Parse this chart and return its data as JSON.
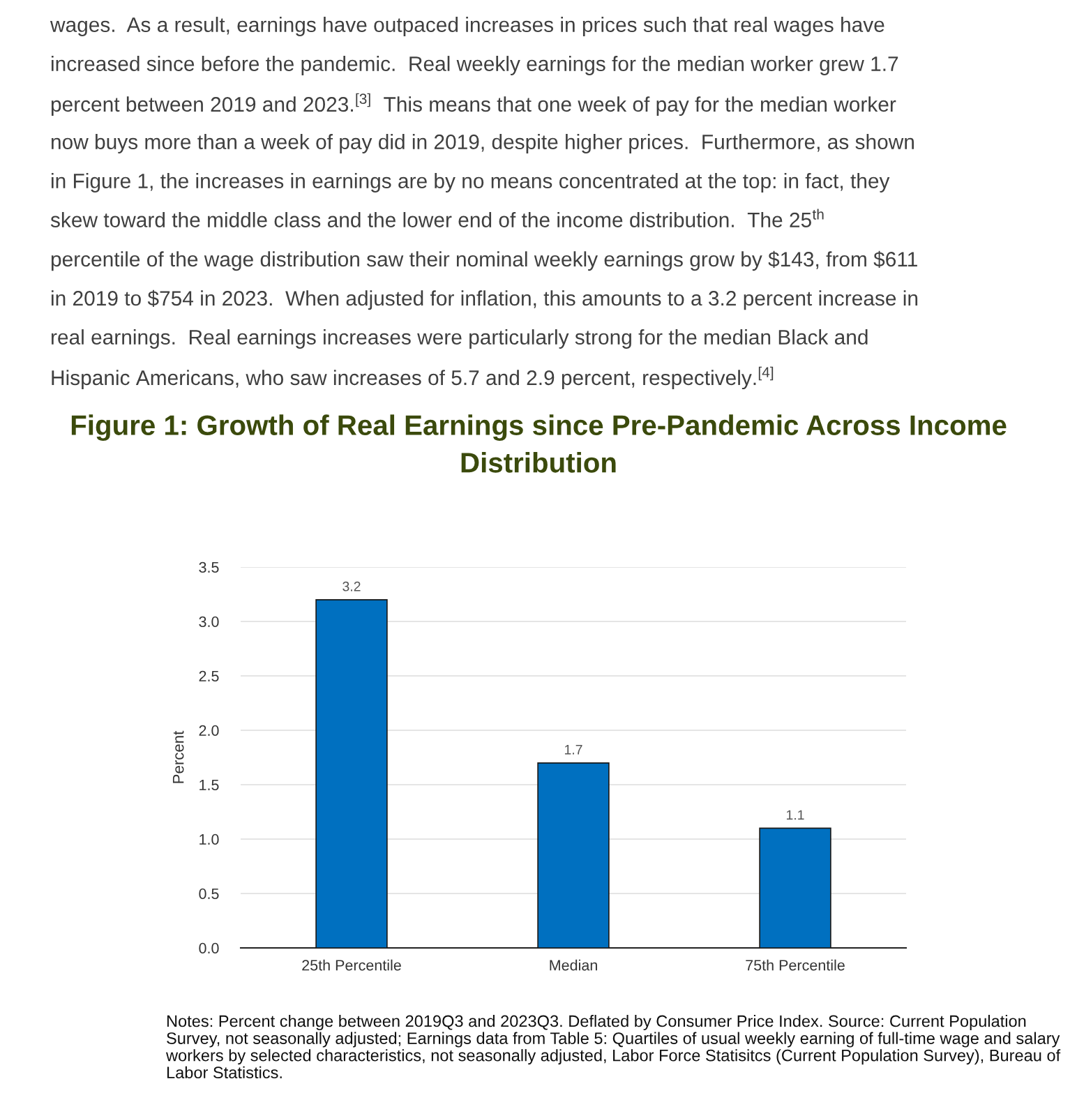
{
  "chart_data": {
    "type": "bar",
    "title": "Figure 1: Growth of Real Earnings since Pre-Pandemic Across Income Distribution",
    "ylabel": "Percent",
    "categories": [
      "25th Percentile",
      "Median",
      "75th Percentile"
    ],
    "values": [
      3.2,
      1.7,
      1.1
    ],
    "color": "#0070c0",
    "data_labels": true,
    "ylim": [
      0,
      3.5
    ],
    "yticks": [
      {
        "value": 0,
        "label": "0.0"
      },
      {
        "value": 0.5,
        "label": "0.5"
      },
      {
        "value": 1,
        "label": "1.0"
      },
      {
        "value": 1.5,
        "label": "1.5"
      },
      {
        "value": 2,
        "label": "2.0"
      },
      {
        "value": 2.5,
        "label": "2.5"
      },
      {
        "value": 3,
        "label": "3.0"
      },
      {
        "value": 3.5,
        "label": "3.5"
      }
    ],
    "grid": "y",
    "legend": false,
    "annotations": [
      "wages.  As a result, earnings have outpaced increases in prices such that real wages have",
      "increased since before the pandemic.  Real weekly earnings for the median worker grew 1.7",
      "percent between 2019 and 2023.$^{[3]}$  This means that one week of pay for the median worker",
      "now buys more than a week of pay did in 2019, despite higher prices.  Furthermore, as shown",
      "in Figure 1, the increases in earnings are by no means concentrated at the top: in fact, they",
      "skew toward the middle class and the lower end of the income distribution.  The 25$^{th}$",
      "percentile of the wage distribution saw their nominal weekly earnings grow by $143, from $611",
      "in 2019 to $754 in 2023.  When adjusted for inflation, this amounts to a 3.2 percent increase in",
      "real earnings.  Real earnings increases were particularly strong for the median Black and",
      "Hispanic Americans, who saw increases of 5.7 and 2.9 percent, respectively.$^{[4]}$",
      "Notes: Percent change between 2019Q3 and 2023Q3. Deflated by Consumer Price Index. Source: Current Population Survey, not seasonally adjusted; Earnings data from Table 5: Quartiles of usual weekly earning of full-time wage and salary workers by selected characteristics, not seasonally adjusted, Labor Force Statisitcs (Current Population Survey), Bureau of Labor Statistics."
    ]
  }
}
